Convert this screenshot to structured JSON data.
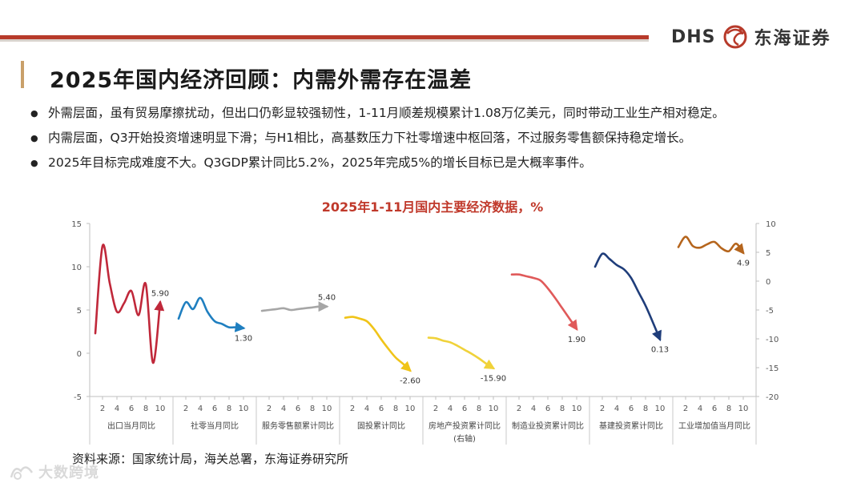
{
  "header": {
    "brand_latin": "DHS",
    "brand_cn": "东海证券",
    "title": "2025年国内经济回顾：内需外需存在温差"
  },
  "bullets": [
    "外需层面，虽有贸易摩擦扰动，但出口仍彰显较强韧性，1-11月顺差规模累计1.08万亿美元，同时带动工业生产相对稳定。",
    "内需层面，Q3开始投资增速明显下滑；与H1相比，高基数压力下社零增速中枢回落，不过服务零售额保持稳定增长。",
    "2025年目标完成难度不大。Q3GDP累计同比5.2%，2025年完成5%的增长目标已是大概率事件。"
  ],
  "source": "资料来源：国家统计局，海关总署，东海证券研究所",
  "watermark": "大数跨境",
  "chart_data": {
    "type": "line",
    "title": "2025年1-11月国内主要经济数据，%",
    "left_axis": {
      "ylim": [
        -5,
        15
      ],
      "ticks": [
        "15",
        "10",
        "5",
        "0",
        "-5"
      ]
    },
    "right_axis": {
      "ylim": [
        -20,
        10
      ],
      "ticks": [
        "10",
        "5",
        "0",
        "-5",
        "-10",
        "-15",
        "-20"
      ]
    },
    "x_tick_labels": [
      "2",
      "4",
      "6",
      "8",
      "10"
    ],
    "grid": false,
    "series": [
      {
        "name": "出口当月同比",
        "axis": "left",
        "color": "#c0283a",
        "x": [
          1,
          2,
          3,
          4,
          5,
          6,
          7,
          8,
          9,
          10,
          11
        ],
        "values": [
          2.3,
          12.4,
          8.1,
          4.8,
          5.8,
          7.2,
          4.4,
          8.0,
          -1.1,
          5.9,
          5.9
        ],
        "end_label": "5.90"
      },
      {
        "name": "社零当月同比",
        "axis": "left",
        "color": "#1f7fc0",
        "x": [
          1,
          2,
          3,
          4,
          5,
          6,
          7,
          8,
          9,
          10,
          11
        ],
        "values": [
          4.0,
          5.9,
          5.1,
          6.4,
          4.8,
          3.7,
          3.4,
          3.0,
          3.0,
          2.9,
          1.3
        ],
        "end_label": "1.30"
      },
      {
        "name": "服务零售额累计同比",
        "axis": "left",
        "color": "#a6a6a6",
        "x": [
          1,
          2,
          3,
          4,
          5,
          6,
          7,
          8,
          9,
          10,
          11
        ],
        "values": [
          4.9,
          5.0,
          5.1,
          5.2,
          5.0,
          5.1,
          5.2,
          5.3,
          5.4,
          5.4,
          5.4
        ],
        "end_label": "5.40"
      },
      {
        "name": "固投累计同比",
        "axis": "left",
        "color": "#f0c419",
        "x": [
          1,
          2,
          3,
          4,
          5,
          6,
          7,
          8,
          9,
          10,
          11
        ],
        "values": [
          4.1,
          4.2,
          4.0,
          3.7,
          2.8,
          1.6,
          0.5,
          -0.5,
          -1.2,
          -2.0,
          -2.6
        ],
        "end_label": "-2.60"
      },
      {
        "name": "房地产投资累计同比(右轴)",
        "axis": "right",
        "color": "#f0d23a",
        "x": [
          1,
          2,
          3,
          4,
          5,
          6,
          7,
          8,
          9,
          10,
          11
        ],
        "values": [
          -9.8,
          -9.9,
          -10.3,
          -10.6,
          -11.2,
          -11.9,
          -12.6,
          -13.4,
          -14.3,
          -15.1,
          -15.9
        ],
        "end_label": "-15.90"
      },
      {
        "name": "制造业投资累计同比",
        "axis": "left",
        "color": "#e05a5a",
        "x": [
          1,
          2,
          3,
          4,
          5,
          6,
          7,
          8,
          9,
          10,
          11
        ],
        "values": [
          9.1,
          9.1,
          8.9,
          8.7,
          8.4,
          7.5,
          6.4,
          5.2,
          4.0,
          2.8,
          1.9
        ],
        "end_label": "1.90"
      },
      {
        "name": "基建投资累计同比",
        "axis": "left",
        "color": "#1f3d7a",
        "x": [
          1,
          2,
          3,
          4,
          5,
          6,
          7,
          8,
          9,
          10,
          11
        ],
        "values": [
          10.0,
          11.5,
          10.9,
          10.2,
          9.7,
          8.7,
          7.1,
          5.5,
          3.6,
          1.6,
          0.13
        ],
        "end_label": "0.13"
      },
      {
        "name": "工业增加值当月同比",
        "axis": "right",
        "color": "#b5651d",
        "x": [
          1,
          2,
          3,
          4,
          5,
          6,
          7,
          8,
          9,
          10,
          11
        ],
        "values": [
          5.9,
          7.7,
          6.1,
          5.8,
          6.4,
          6.8,
          5.7,
          5.2,
          6.5,
          4.9,
          4.9
        ],
        "end_label": "4.9"
      }
    ]
  }
}
